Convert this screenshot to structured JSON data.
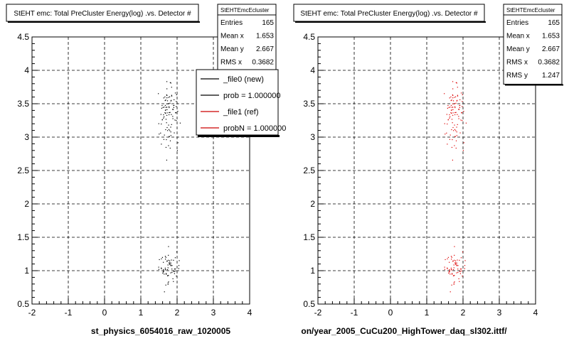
{
  "chart_data": [
    {
      "type": "scatter",
      "title": "StEHT emc: Total PreCluster Energy(log) .vs. Detector #",
      "xlabel": "",
      "ylabel": "",
      "xlim": [
        -2,
        4
      ],
      "ylim": [
        0.5,
        4.5
      ],
      "x_ticks": [
        "-2",
        "-1",
        "0",
        "1",
        "2",
        "3",
        "4"
      ],
      "y_ticks": [
        "0.5",
        "1",
        "1.5",
        "2",
        "2.5",
        "3",
        "3.5",
        "4",
        "4.5"
      ],
      "grid": true,
      "file_label": "st_physics_6054016_raw_1020005",
      "marker_color": "#000000",
      "stats": {
        "name": "StEHTEmcEcluster",
        "rows": [
          {
            "label": "Entries",
            "value": "165"
          },
          {
            "label": "Mean x",
            "value": "1.653"
          },
          {
            "label": "Mean y",
            "value": "2.667"
          },
          {
            "label": "RMS x",
            "value": "0.3682"
          }
        ]
      },
      "legend": {
        "placement": "top-right",
        "entries": [
          {
            "label": "_file0 (new)",
            "color": "#000000"
          },
          {
            "label": "prob = 1.000000",
            "color": "#000000"
          },
          {
            "label": "_file1 (ref)",
            "color": "#cc0000"
          },
          {
            "label": "probN = 1.000000",
            "color": "#cc0000"
          }
        ]
      }
    },
    {
      "type": "scatter",
      "title": "StEHT emc: Total PreCluster Energy(log) .vs. Detector #",
      "xlabel": "",
      "ylabel": "",
      "xlim": [
        -2,
        4
      ],
      "ylim": [
        0.5,
        4.5
      ],
      "x_ticks": [
        "-2",
        "-1",
        "0",
        "1",
        "2",
        "3",
        "4"
      ],
      "y_ticks": [
        "0.5",
        "1",
        "1.5",
        "2",
        "2.5",
        "3",
        "3.5",
        "4",
        "4.5"
      ],
      "grid": true,
      "file_label": "on/year_2005_CuCu200_HighTower_daq_sl302.ittf/",
      "marker_color": "#dd0000",
      "stats": {
        "name": "StEHTEmcEcluster",
        "rows": [
          {
            "label": "Entries",
            "value": "165"
          },
          {
            "label": "Mean x",
            "value": "1.653"
          },
          {
            "label": "Mean y",
            "value": "2.667"
          },
          {
            "label": "RMS x",
            "value": "0.3682"
          },
          {
            "label": "RMS y",
            "value": "1.247"
          }
        ]
      },
      "legend": null
    }
  ]
}
